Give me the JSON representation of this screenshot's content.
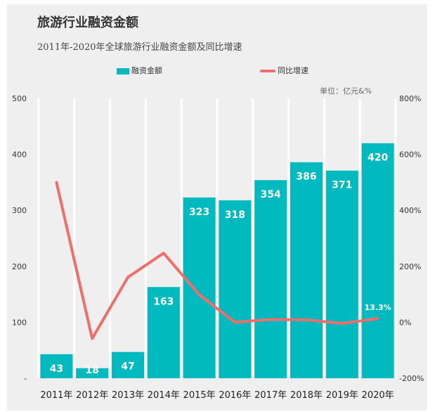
{
  "title": "旅游行业融资金额",
  "subtitle": "2011年-2020年全球旅游行业融资金额及同比增速",
  "unit": "单位：亿元&%",
  "colors": {
    "bar": "#00babf",
    "line": "#f06e6a",
    "panel": "#efefef"
  },
  "chart_data": {
    "type": "bar",
    "categories": [
      "2011年",
      "2012年",
      "2013年",
      "2014年",
      "2015年",
      "2016年",
      "2017年",
      "2018年",
      "2019年",
      "2020年"
    ],
    "series": [
      {
        "name": "融资金额",
        "type": "bar",
        "axis": "left",
        "values": [
          43,
          18,
          47,
          163,
          323,
          318,
          354,
          386,
          371,
          420
        ],
        "labels": [
          "43",
          "18",
          "47",
          "163",
          "323",
          "318",
          "354",
          "386",
          "371",
          "420"
        ]
      },
      {
        "name": "同比增速",
        "type": "line",
        "axis": "right",
        "values": [
          500,
          -58,
          161,
          247,
          98,
          0,
          10,
          9,
          -4,
          13.3
        ],
        "point_labels": [
          "",
          "",
          "",
          "",
          "",
          "",
          "",
          "",
          "",
          "13.3%"
        ]
      }
    ],
    "y_left": {
      "ylim": [
        0,
        500
      ],
      "ticks": [
        "-",
        "100",
        "200",
        "300",
        "400",
        "500"
      ]
    },
    "y_right": {
      "ylim": [
        -200,
        800
      ],
      "ticks": [
        "-200%",
        "0%",
        "200%",
        "400%",
        "600%",
        "800%"
      ]
    },
    "grid": "vertical category separators",
    "legend": "top-center"
  }
}
